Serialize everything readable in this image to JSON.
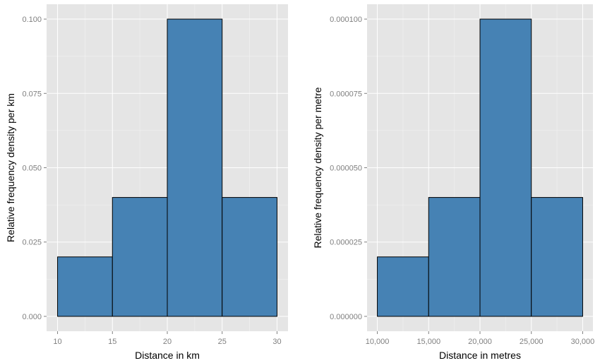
{
  "chart_data": [
    {
      "type": "bar",
      "subtype": "histogram",
      "bins": [
        [
          10,
          15
        ],
        [
          15,
          20
        ],
        [
          20,
          25
        ],
        [
          25,
          30
        ]
      ],
      "values": [
        0.02,
        0.04,
        0.1,
        0.04
      ],
      "xlabel": "Distance in km",
      "ylabel": "Relative frequency density per km",
      "xlim": [
        9,
        31
      ],
      "ylim": [
        -0.005,
        0.105
      ],
      "xticks": [
        10,
        15,
        20,
        25,
        30
      ],
      "xtick_labels": [
        "10",
        "15",
        "20",
        "25",
        "30"
      ],
      "yticks": [
        0,
        0.025,
        0.05,
        0.075,
        0.1
      ],
      "ytick_labels": [
        "0.000",
        "0.025",
        "0.050",
        "0.075",
        "0.100"
      ],
      "grid": true,
      "fill_color": "#4682b4",
      "panel_color": "#e5e5e5"
    },
    {
      "type": "bar",
      "subtype": "histogram",
      "bins": [
        [
          10000,
          15000
        ],
        [
          15000,
          20000
        ],
        [
          20000,
          25000
        ],
        [
          25000,
          30000
        ]
      ],
      "values": [
        2e-05,
        4e-05,
        0.0001,
        4e-05
      ],
      "xlabel": "Distance in metres",
      "ylabel": "Relative frequency density per metre",
      "xlim": [
        9000,
        31000
      ],
      "ylim": [
        -5e-06,
        0.000105
      ],
      "xticks": [
        10000,
        15000,
        20000,
        25000,
        30000
      ],
      "xtick_labels": [
        "10,000",
        "15,000",
        "20,000",
        "25,000",
        "30,000"
      ],
      "yticks": [
        0,
        2.5e-05,
        5e-05,
        7.5e-05,
        0.0001
      ],
      "ytick_labels": [
        "0.000000",
        "0.000025",
        "0.000050",
        "0.000075",
        "0.000100"
      ],
      "grid": true,
      "fill_color": "#4682b4",
      "panel_color": "#e5e5e5"
    }
  ]
}
